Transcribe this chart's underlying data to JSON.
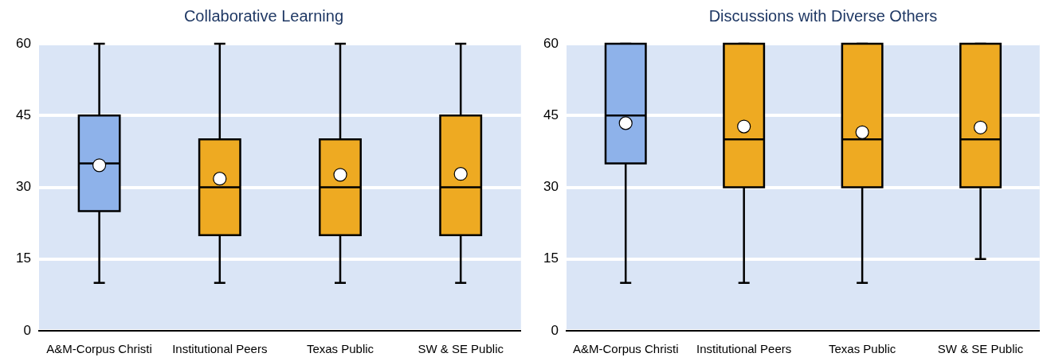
{
  "chart_data": [
    {
      "type": "box",
      "title": "Collaborative Learning",
      "categories": [
        "A&M-Corpus Christi",
        "Institutional Peers",
        "Texas Public",
        "SW & SE Public"
      ],
      "colors": [
        "#8eb2ea",
        "#eeaa22",
        "#eeaa22",
        "#eeaa22"
      ],
      "boxes": [
        {
          "low": 10,
          "q1": 25,
          "median": 35,
          "q3": 45,
          "high": 60,
          "mean": 34.6
        },
        {
          "low": 10,
          "q1": 20,
          "median": 30,
          "q3": 40,
          "high": 60,
          "mean": 31.8
        },
        {
          "low": 10,
          "q1": 20,
          "median": 30,
          "q3": 40,
          "high": 60,
          "mean": 32.6
        },
        {
          "low": 10,
          "q1": 20,
          "median": 30,
          "q3": 45,
          "high": 60,
          "mean": 32.8
        }
      ],
      "ylim": [
        0,
        60
      ],
      "yticks": [
        0,
        15,
        30,
        45,
        60
      ],
      "grid": "y"
    },
    {
      "type": "box",
      "title": "Discussions with Diverse Others",
      "categories": [
        "A&M-Corpus Christi",
        "Institutional Peers",
        "Texas Public",
        "SW & SE Public"
      ],
      "colors": [
        "#8eb2ea",
        "#eeaa22",
        "#eeaa22",
        "#eeaa22"
      ],
      "boxes": [
        {
          "low": 10,
          "q1": 35,
          "median": 45,
          "q3": 60,
          "high": 60,
          "mean": 43.4
        },
        {
          "low": 10,
          "q1": 30,
          "median": 40,
          "q3": 60,
          "high": 60,
          "mean": 42.7
        },
        {
          "low": 10,
          "q1": 30,
          "median": 40,
          "q3": 60,
          "high": 60,
          "mean": 41.5
        },
        {
          "low": 15,
          "q1": 30,
          "median": 40,
          "q3": 60,
          "high": 60,
          "mean": 42.5
        }
      ],
      "ylim": [
        0,
        60
      ],
      "yticks": [
        0,
        15,
        30,
        45,
        60
      ],
      "grid": "y"
    }
  ]
}
